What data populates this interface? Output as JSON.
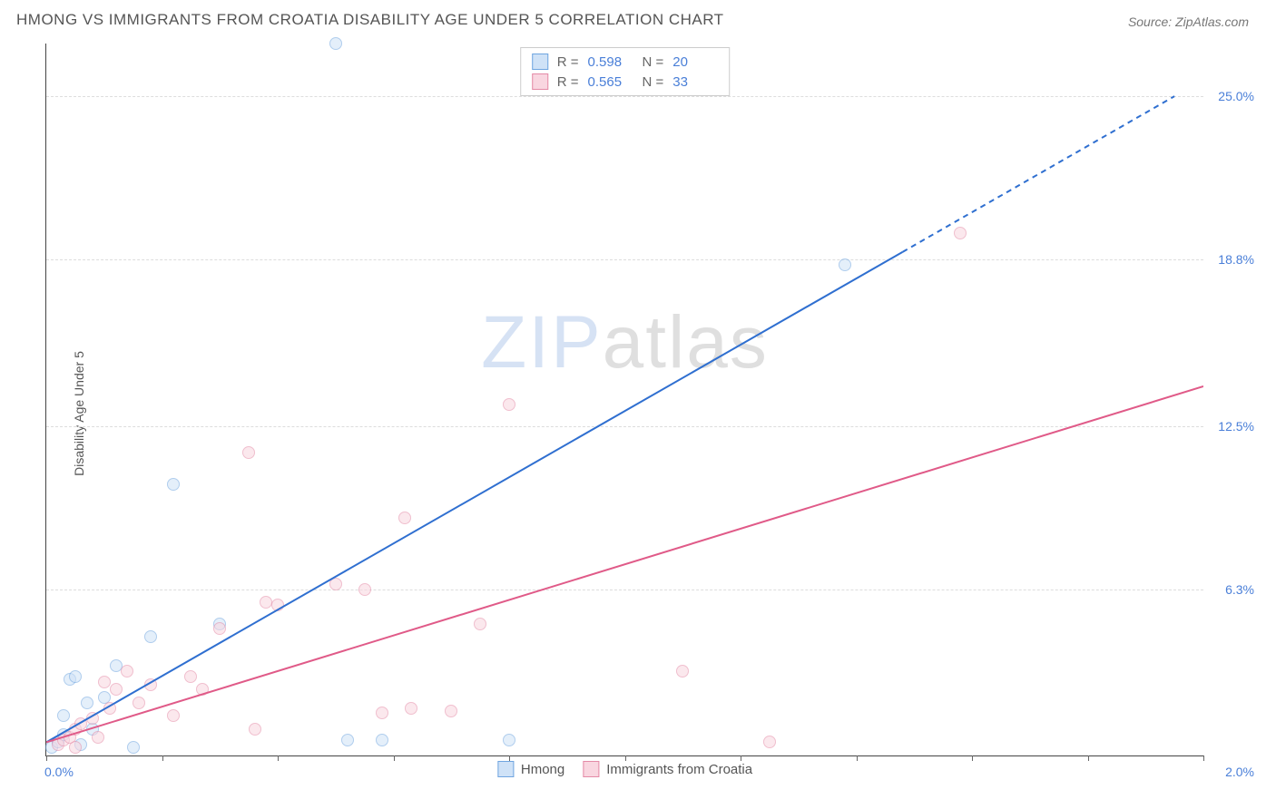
{
  "header": {
    "title": "HMONG VS IMMIGRANTS FROM CROATIA DISABILITY AGE UNDER 5 CORRELATION CHART",
    "source": "Source: ZipAtlas.com"
  },
  "watermark": {
    "part1": "ZIP",
    "part2": "atlas"
  },
  "chart": {
    "type": "scatter",
    "y_axis_title": "Disability Age Under 5",
    "xlim": [
      0.0,
      2.0
    ],
    "ylim": [
      0.0,
      27.0
    ],
    "x_ticks_minor": [
      0.0,
      0.2,
      0.4,
      0.6,
      0.8,
      1.0,
      1.2,
      1.4,
      1.6,
      1.8,
      2.0
    ],
    "x_labels": [
      {
        "v": 0.0,
        "t": "0.0%"
      },
      {
        "v": 2.0,
        "t": "2.0%"
      }
    ],
    "y_gridlines": [
      6.3,
      12.5,
      18.8,
      25.0
    ],
    "y_labels": [
      {
        "v": 6.3,
        "t": "6.3%"
      },
      {
        "v": 12.5,
        "t": "12.5%"
      },
      {
        "v": 18.8,
        "t": "18.8%"
      },
      {
        "v": 25.0,
        "t": "25.0%"
      }
    ],
    "background_color": "#ffffff",
    "grid_color": "#dddddd",
    "axis_color": "#444444",
    "label_color": "#4a7fd8",
    "marker_radius": 7,
    "marker_opacity": 0.55,
    "legend_top": {
      "rows": [
        {
          "swatch_fill": "#cfe2f7",
          "swatch_border": "#6fa5e0",
          "r_label": "R =",
          "r": "0.598",
          "n_label": "N =",
          "n": "20"
        },
        {
          "swatch_fill": "#f9d6e0",
          "swatch_border": "#e48aa6",
          "r_label": "R =",
          "r": "0.565",
          "n_label": "N =",
          "n": "33"
        }
      ]
    },
    "legend_bottom": {
      "items": [
        {
          "swatch_fill": "#cfe2f7",
          "swatch_border": "#6fa5e0",
          "label": "Hmong"
        },
        {
          "swatch_fill": "#f9d6e0",
          "swatch_border": "#e48aa6",
          "label": "Immigrants from Croatia"
        }
      ]
    },
    "series": [
      {
        "name": "Hmong",
        "color_fill": "#cfe2f7",
        "color_stroke": "#6fa5e0",
        "trend": {
          "x1": 0.0,
          "y1": 0.5,
          "x2": 1.95,
          "y2": 25.0,
          "solid_until_x": 1.48,
          "color": "#2f6fd0",
          "width": 2
        },
        "points": [
          {
            "x": 0.01,
            "y": 0.3
          },
          {
            "x": 0.02,
            "y": 0.5
          },
          {
            "x": 0.03,
            "y": 0.8
          },
          {
            "x": 0.03,
            "y": 1.5
          },
          {
            "x": 0.04,
            "y": 2.9
          },
          {
            "x": 0.05,
            "y": 3.0
          },
          {
            "x": 0.07,
            "y": 2.0
          },
          {
            "x": 0.1,
            "y": 2.2
          },
          {
            "x": 0.12,
            "y": 3.4
          },
          {
            "x": 0.15,
            "y": 0.3
          },
          {
            "x": 0.18,
            "y": 4.5
          },
          {
            "x": 0.22,
            "y": 10.3
          },
          {
            "x": 0.3,
            "y": 5.0
          },
          {
            "x": 0.5,
            "y": 27.0
          },
          {
            "x": 0.52,
            "y": 0.6
          },
          {
            "x": 0.58,
            "y": 0.6
          },
          {
            "x": 0.8,
            "y": 0.6
          },
          {
            "x": 1.38,
            "y": 18.6
          },
          {
            "x": 0.06,
            "y": 0.4
          },
          {
            "x": 0.08,
            "y": 1.0
          }
        ]
      },
      {
        "name": "Croatia",
        "color_fill": "#f9d6e0",
        "color_stroke": "#e48aa6",
        "trend": {
          "x1": 0.0,
          "y1": 0.5,
          "x2": 2.0,
          "y2": 14.0,
          "solid_until_x": 2.0,
          "color": "#e05a88",
          "width": 2
        },
        "points": [
          {
            "x": 0.02,
            "y": 0.4
          },
          {
            "x": 0.03,
            "y": 0.6
          },
          {
            "x": 0.04,
            "y": 0.7
          },
          {
            "x": 0.05,
            "y": 1.0
          },
          {
            "x": 0.06,
            "y": 1.2
          },
          {
            "x": 0.08,
            "y": 1.4
          },
          {
            "x": 0.09,
            "y": 0.7
          },
          {
            "x": 0.1,
            "y": 2.8
          },
          {
            "x": 0.12,
            "y": 2.5
          },
          {
            "x": 0.14,
            "y": 3.2
          },
          {
            "x": 0.16,
            "y": 2.0
          },
          {
            "x": 0.18,
            "y": 2.7
          },
          {
            "x": 0.22,
            "y": 1.5
          },
          {
            "x": 0.25,
            "y": 3.0
          },
          {
            "x": 0.27,
            "y": 2.5
          },
          {
            "x": 0.3,
            "y": 4.8
          },
          {
            "x": 0.35,
            "y": 11.5
          },
          {
            "x": 0.36,
            "y": 1.0
          },
          {
            "x": 0.38,
            "y": 5.8
          },
          {
            "x": 0.4,
            "y": 5.7
          },
          {
            "x": 0.5,
            "y": 6.5
          },
          {
            "x": 0.55,
            "y": 6.3
          },
          {
            "x": 0.58,
            "y": 1.6
          },
          {
            "x": 0.62,
            "y": 9.0
          },
          {
            "x": 0.63,
            "y": 1.8
          },
          {
            "x": 0.7,
            "y": 1.7
          },
          {
            "x": 0.75,
            "y": 5.0
          },
          {
            "x": 0.8,
            "y": 13.3
          },
          {
            "x": 1.1,
            "y": 3.2
          },
          {
            "x": 1.25,
            "y": 0.5
          },
          {
            "x": 1.58,
            "y": 19.8
          },
          {
            "x": 0.11,
            "y": 1.8
          },
          {
            "x": 0.05,
            "y": 0.3
          }
        ]
      }
    ]
  }
}
